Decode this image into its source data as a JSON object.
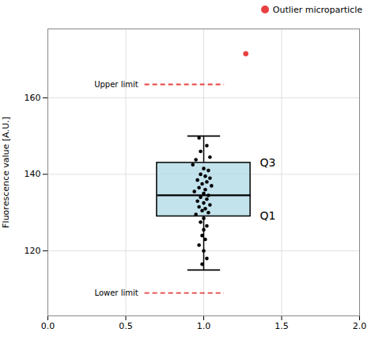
{
  "chart_data": {
    "type": "box",
    "ylabel": "Fluorescence value [A.U.]",
    "box": {
      "x": 1.0,
      "width": 0.6,
      "q1": 129.0,
      "median": 134.5,
      "q3": 143.0,
      "whisker_low": 115.0,
      "whisker_high": 150.0,
      "color": "#add8e6"
    },
    "points": {
      "x": [
        0.97,
        1.02,
        0.98,
        1.04,
        0.95,
        0.93,
        1.0,
        1.03,
        0.98,
        1.01,
        1.04,
        0.96,
        1.02,
        0.99,
        1.05,
        0.97,
        1.01,
        0.94,
        1.0,
        1.03,
        0.98,
        1.02,
        0.96,
        1.0,
        1.04,
        0.97,
        1.01,
        0.99,
        1.03,
        0.95,
        1.0,
        0.98,
        1.02,
        1.0,
        0.99,
        1.01,
        0.97,
        1.0,
        1.02,
        0.99
      ],
      "y": [
        149.5,
        147.5,
        146.0,
        144.5,
        143.8,
        142.5,
        141.5,
        141.0,
        140.0,
        139.5,
        139.0,
        138.5,
        138.0,
        137.5,
        137.0,
        136.5,
        136.0,
        135.5,
        135.0,
        134.5,
        134.0,
        133.5,
        133.0,
        132.5,
        132.0,
        131.5,
        131.0,
        130.5,
        130.0,
        129.5,
        128.5,
        127.5,
        126.5,
        125.5,
        124.0,
        123.0,
        121.5,
        120.0,
        118.0,
        116.5
      ],
      "color": "#000000"
    },
    "outlier": {
      "name": "Outlier microparticle",
      "x": 1.27,
      "y": 171.5,
      "color": "#e84040"
    },
    "limits": [
      {
        "label": "Upper limit",
        "value": 163.5,
        "x": [
          0.62,
          1.13
        ],
        "color": "#e84040",
        "line_style": "dashed"
      },
      {
        "label": "Lower limit",
        "value": 109.0,
        "x": [
          0.62,
          1.13
        ],
        "color": "#e84040",
        "line_style": "dashed"
      }
    ],
    "annotations": [
      {
        "text": "Q3",
        "y": 143.0
      },
      {
        "text": "Q1",
        "y": 129.0
      }
    ],
    "xlim": [
      0.0,
      2.0
    ],
    "ylim": [
      103,
      178
    ],
    "xticks": [
      {
        "value": 0.0,
        "label": "0.0"
      },
      0.5,
      {
        "value": 1.0,
        "label": "1.0"
      },
      1.5,
      {
        "value": 2.0,
        "label": "2.0"
      }
    ],
    "yticks": [
      120,
      140,
      160
    ],
    "grid": true
  }
}
